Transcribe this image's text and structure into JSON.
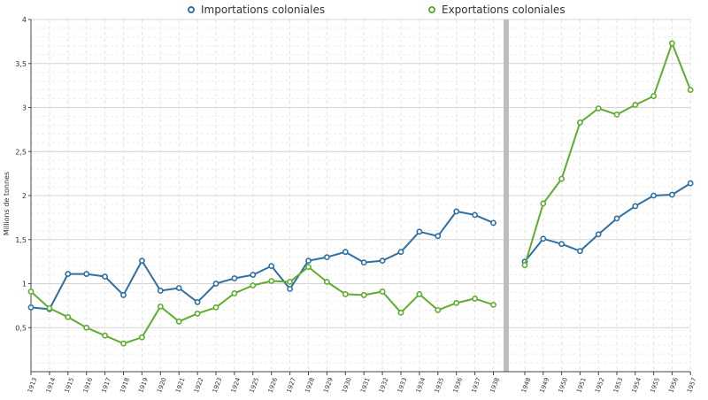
{
  "chart_data": {
    "type": "line",
    "title": "",
    "xlabel": "",
    "ylabel": "Millions de tonnes",
    "ylim": [
      0,
      4
    ],
    "yticks": [
      {
        "value": 0.5,
        "label": "0,5"
      },
      {
        "value": 1,
        "label": "1"
      },
      {
        "value": 1.5,
        "label": "1,5"
      },
      {
        "value": 2,
        "label": "2"
      },
      {
        "value": 2.5,
        "label": "2,5"
      },
      {
        "value": 3,
        "label": "3"
      },
      {
        "value": 3.5,
        "label": "3,5"
      },
      {
        "value": 4,
        "label": "4"
      }
    ],
    "grid": true,
    "legend_position": "top-center",
    "axis_break": "between 1938 and 1948",
    "categories": [
      "1913",
      "1914",
      "1915",
      "1916",
      "1917",
      "1918",
      "1919",
      "1920",
      "1921",
      "1922",
      "1923",
      "1924",
      "1925",
      "1926",
      "1927",
      "1928",
      "1929",
      "1930",
      "1931",
      "1932",
      "1933",
      "1934",
      "1935",
      "1936",
      "1937",
      "1938",
      "1948",
      "1949",
      "1950",
      "1951",
      "1952",
      "1953",
      "1954",
      "1955",
      "1956",
      "1957"
    ],
    "series": [
      {
        "name": "Importations coloniales",
        "color": "#2f6fa4",
        "values": [
          0.73,
          0.71,
          1.11,
          1.11,
          1.08,
          0.87,
          1.26,
          0.92,
          0.95,
          0.79,
          1.0,
          1.06,
          1.1,
          1.2,
          0.94,
          1.26,
          1.3,
          1.36,
          1.24,
          1.26,
          1.36,
          1.59,
          1.54,
          1.82,
          1.78,
          1.69,
          1.25,
          1.51,
          1.45,
          1.37,
          1.56,
          1.74,
          1.88,
          2.0,
          2.01,
          2.14
        ]
      },
      {
        "name": "Exportations coloniales",
        "color": "#5fad2f",
        "values": [
          0.91,
          0.72,
          0.62,
          0.5,
          0.41,
          0.32,
          0.39,
          0.74,
          0.57,
          0.66,
          0.73,
          0.89,
          0.98,
          1.03,
          1.02,
          1.19,
          1.02,
          0.88,
          0.87,
          0.91,
          0.67,
          0.88,
          0.7,
          0.78,
          0.83,
          0.76,
          1.21,
          1.91,
          2.19,
          2.83,
          2.99,
          2.92,
          3.03,
          3.13,
          3.73,
          3.2
        ]
      }
    ]
  }
}
